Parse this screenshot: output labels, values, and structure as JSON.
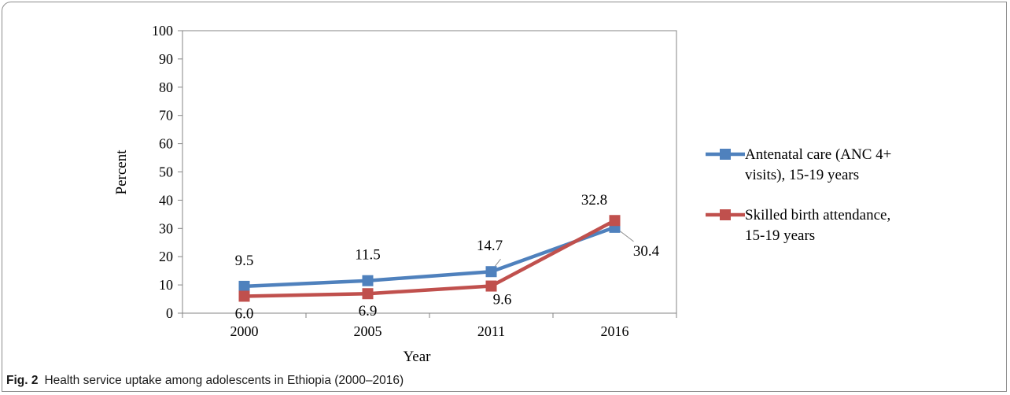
{
  "caption": {
    "label": "Fig. 2",
    "text": "Health service uptake among adolescents in Ethiopia (2000–2016)"
  },
  "chart_data": {
    "type": "line",
    "categories": [
      "2000",
      "2005",
      "2011",
      "2016"
    ],
    "xlabel": "Year",
    "ylabel": "Percent",
    "ylim": [
      0,
      100
    ],
    "yticks": [
      0,
      10,
      20,
      30,
      40,
      50,
      60,
      70,
      80,
      90,
      100
    ],
    "grid": false,
    "legend_position": "right",
    "series": [
      {
        "name": "Antenatal care (ANC 4+ visits), 15-19 years",
        "legend_lines": [
          "Antenatal care (ANC 4+",
          "visits), 15-19 years"
        ],
        "values": [
          9.5,
          11.5,
          14.7,
          30.4
        ],
        "labels": [
          "9.5",
          "11.5",
          "14.7",
          "30.4"
        ],
        "color": "#4f81bd"
      },
      {
        "name": "Skilled birth attendance, 15-19 years",
        "legend_lines": [
          "Skilled birth attendance,",
          "15-19 years"
        ],
        "values": [
          6.0,
          6.9,
          9.6,
          32.8
        ],
        "labels": [
          "6.0",
          "6.9",
          "9.6",
          "32.8"
        ],
        "color": "#c0504d"
      }
    ]
  }
}
